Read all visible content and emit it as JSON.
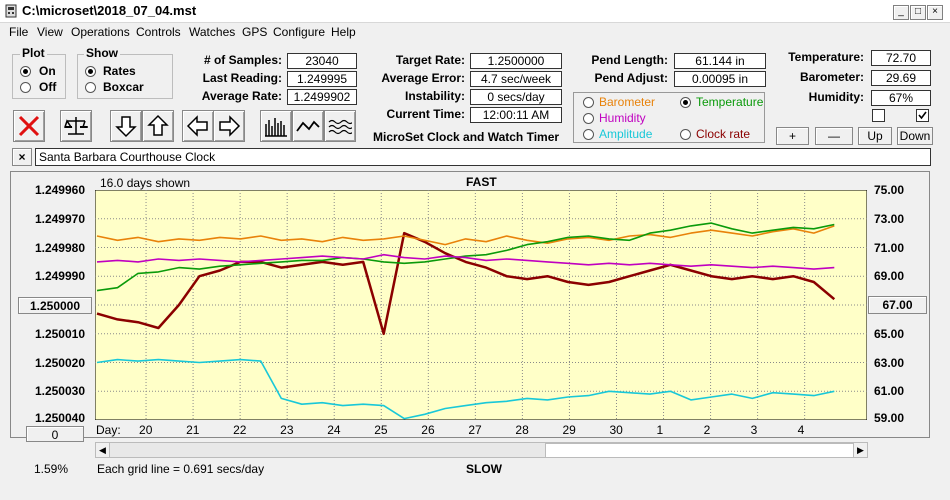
{
  "window": {
    "title": "C:\\microset\\2018_07_04.mst",
    "min_glyph": "_",
    "max_glyph": "□",
    "close_glyph": "×"
  },
  "menu": [
    "File",
    "View",
    "Operations",
    "Controls",
    "Watches",
    "GPS",
    "Configure",
    "Help"
  ],
  "plot_group": {
    "title": "Plot",
    "options": [
      "On",
      "Off"
    ],
    "selected": "On"
  },
  "show_group": {
    "title": "Show",
    "options": [
      "Rates",
      "Boxcar"
    ],
    "selected": "Rates"
  },
  "stats": {
    "samples_label": "# of Samples:",
    "samples": "23040",
    "last_label": "Last Reading:",
    "last": "1.249995",
    "avg_label": "Average Rate:",
    "avg": "1.2499902",
    "target_label": "Target Rate:",
    "target": "1.2500000",
    "error_label": "Average Error:",
    "error": "4.7 sec/week",
    "instab_label": "Instability:",
    "instab": "0 secs/day",
    "time_label": "Current Time:",
    "time": "12:00:11 AM",
    "pendlen_label": "Pend Length:",
    "pendlen": "61.144 in",
    "pendadj_label": "Pend Adjust:",
    "pendadj": "0.00095 in",
    "temp_label": "Temperature:",
    "temp": "72.70",
    "baro_label": "Barometer:",
    "baro": "29.69",
    "hum_label": "Humidity:",
    "hum": "67%"
  },
  "app_caption": "MicroSet Clock and Watch Timer",
  "series_select": {
    "options": [
      {
        "label": "Barometer",
        "color": "#e8820a"
      },
      {
        "label": "Temperature",
        "color": "#0a9a0a"
      },
      {
        "label": "Humidity",
        "color": "#c000c0"
      },
      {
        "label": "Amplitude",
        "color": "#18c8d8"
      },
      {
        "label": "Clock rate",
        "color": "#8b0000"
      }
    ],
    "selected": "Temperature"
  },
  "adjust_buttons": [
    "+",
    "—",
    "Up",
    "Down"
  ],
  "toolbar_icons": [
    "clear-icon",
    "balance-scale-icon",
    "arrow-down-icon",
    "arrow-up-icon",
    "arrow-left-icon",
    "arrow-right-icon",
    "bar-graph-icon",
    "line-graph-icon",
    "wave-graph-icon"
  ],
  "clock_name": "Santa Barbara Courthouse Clock",
  "clock_close": "×",
  "graph": {
    "days_shown": "16.0 days shown",
    "top_label": "FAST",
    "bottom_label": "SLOW",
    "grid_note": "Each grid line = 0.691 secs/day",
    "percent": "1.59%",
    "left_button": "1.250000",
    "right_button": "67.00",
    "bottom_left_button": "0",
    "day_prefix": "Day:"
  },
  "chart_data": {
    "type": "line",
    "x_ticks": [
      "20",
      "21",
      "22",
      "23",
      "24",
      "25",
      "26",
      "27",
      "28",
      "29",
      "30",
      "1",
      "2",
      "3",
      "4"
    ],
    "y_left_ticks": [
      "1.249960",
      "1.249970",
      "1.249980",
      "1.249990",
      "1.250000",
      "1.250010",
      "1.250020",
      "1.250030",
      "1.250040"
    ],
    "y_right_ticks": [
      "75.00",
      "73.00",
      "71.00",
      "69.00",
      "67.00",
      "65.00",
      "63.00",
      "61.00",
      "59.00"
    ],
    "ylim_left": [
      1.25004,
      1.24996
    ],
    "ylim_right": [
      59,
      75
    ],
    "grid": true,
    "series": [
      {
        "color": "#8b0000",
        "values": [
          1.250003,
          1.250005,
          1.250006,
          1.250008,
          1.25,
          1.24999,
          1.249988,
          1.249985,
          1.249985,
          1.249987,
          1.249986,
          1.249985,
          1.249986,
          1.249985,
          1.25001,
          1.249975,
          1.249978,
          1.249982,
          1.249985,
          1.249987,
          1.24999,
          1.249991,
          1.24999,
          1.249992,
          1.249993,
          1.249992,
          1.24999,
          1.249988,
          1.249986,
          1.249988,
          1.24999,
          1.249991,
          1.24999,
          1.249991,
          1.24999,
          1.249992,
          1.249998
        ]
      },
      {
        "color": "#e8820a",
        "values": [
          71.8,
          71.5,
          71.7,
          71.4,
          71.6,
          71.5,
          71.7,
          71.6,
          71.8,
          71.5,
          71.6,
          71.4,
          71.7,
          71.5,
          71.6,
          71.8,
          71.5,
          71.2,
          71.6,
          71.4,
          71.8,
          71.5,
          71.3,
          71.6,
          71.7,
          71.5,
          71.8,
          71.9,
          71.7,
          72.0,
          72.2,
          72.0,
          71.8,
          72.1,
          72.3,
          72.0,
          72.5
        ]
      },
      {
        "color": "#0a9a0a",
        "values": [
          68.0,
          68.2,
          69.2,
          69.3,
          69.6,
          69.5,
          69.7,
          69.8,
          69.9,
          70.0,
          70.1,
          70.1,
          70.3,
          70.2,
          70.0,
          69.9,
          70.0,
          70.2,
          70.4,
          70.5,
          70.8,
          71.2,
          71.4,
          71.7,
          71.8,
          71.6,
          71.5,
          72.0,
          72.2,
          72.5,
          72.7,
          72.3,
          72.0,
          72.2,
          72.4,
          72.3,
          72.6
        ]
      },
      {
        "color": "#c000c0",
        "values": [
          70.0,
          70.1,
          70.0,
          70.2,
          70.1,
          70.2,
          70.1,
          70.0,
          70.1,
          70.2,
          70.3,
          70.4,
          70.3,
          70.2,
          70.5,
          70.3,
          70.2,
          70.4,
          70.3,
          70.1,
          70.2,
          70.1,
          70.0,
          69.9,
          69.8,
          69.9,
          69.8,
          69.9,
          69.8,
          69.7,
          69.8,
          69.7,
          69.6,
          69.7,
          69.6,
          69.5,
          69.6
        ]
      },
      {
        "color": "#18c8d8",
        "values": [
          63.0,
          63.2,
          63.1,
          63.2,
          63.1,
          63.0,
          63.1,
          63.2,
          63.1,
          60.5,
          60.1,
          60.2,
          60.0,
          60.1,
          60.0,
          59.1,
          59.4,
          59.8,
          60.0,
          60.2,
          60.3,
          60.5,
          60.4,
          60.6,
          60.7,
          61.0,
          60.9,
          60.8,
          61.0,
          60.4,
          60.6,
          60.8,
          60.5,
          60.9,
          60.8,
          60.7,
          61.0
        ]
      }
    ]
  }
}
